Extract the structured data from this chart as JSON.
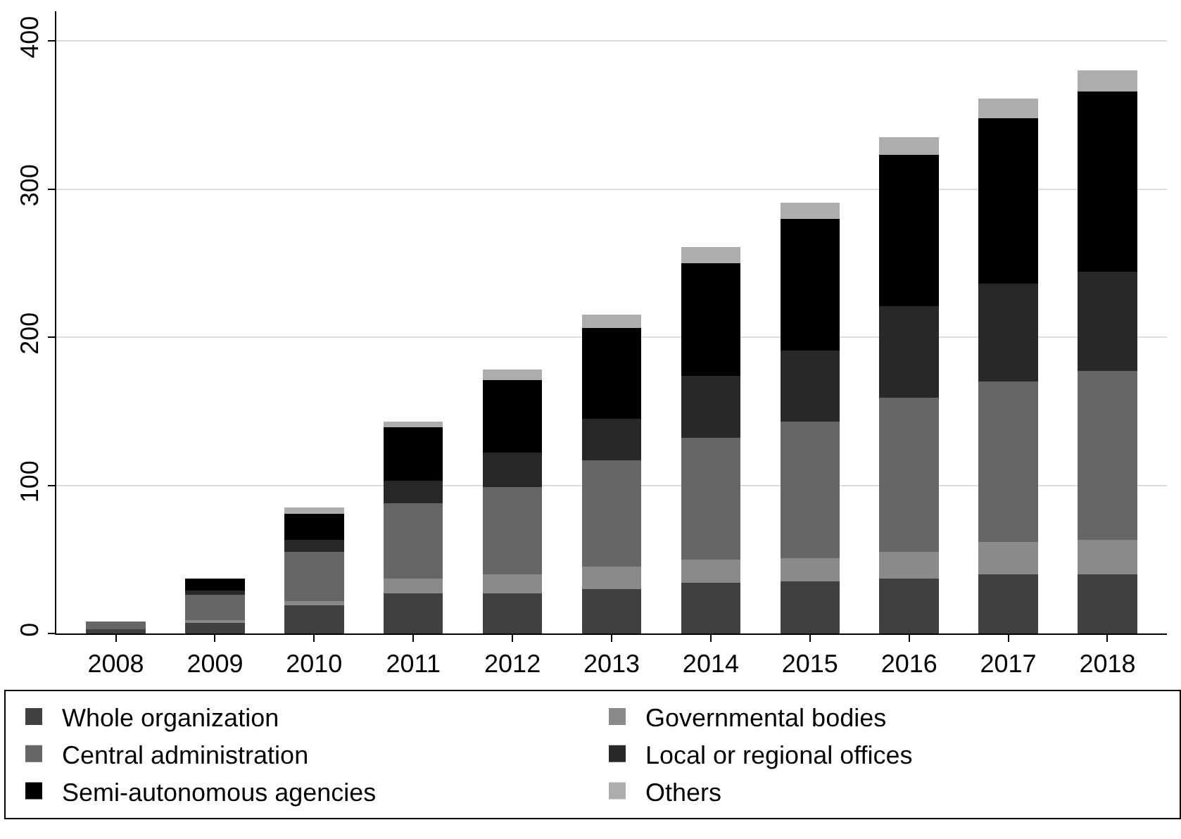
{
  "chart_data": {
    "type": "bar",
    "stacked": true,
    "categories": [
      "2008",
      "2009",
      "2010",
      "2011",
      "2012",
      "2013",
      "2014",
      "2015",
      "2016",
      "2017",
      "2018"
    ],
    "series": [
      {
        "name": "Whole organization",
        "color": "#404040",
        "values": [
          3,
          7,
          19,
          27,
          27,
          30,
          34,
          35,
          37,
          40,
          40
        ]
      },
      {
        "name": "Governmental bodies",
        "color": "#8a8a8a",
        "values": [
          0,
          2,
          3,
          10,
          13,
          15,
          16,
          16,
          18,
          22,
          23
        ]
      },
      {
        "name": "Central administration",
        "color": "#666666",
        "values": [
          5,
          17,
          33,
          51,
          59,
          72,
          82,
          92,
          104,
          108,
          114
        ]
      },
      {
        "name": "Local or regional offices",
        "color": "#282828",
        "values": [
          0,
          3,
          8,
          15,
          23,
          28,
          42,
          48,
          62,
          66,
          67
        ]
      },
      {
        "name": "Semi-autonomous agencies",
        "color": "#000000",
        "values": [
          0,
          8,
          18,
          36,
          49,
          61,
          76,
          89,
          102,
          112,
          122
        ]
      },
      {
        "name": "Others",
        "color": "#adadad",
        "values": [
          0,
          0,
          4,
          4,
          7,
          9,
          11,
          11,
          12,
          13,
          14
        ]
      }
    ],
    "ylim": [
      0,
      420
    ],
    "yticks": [
      0,
      100,
      200,
      300,
      400
    ],
    "grid": "y",
    "legend": "bottom"
  }
}
